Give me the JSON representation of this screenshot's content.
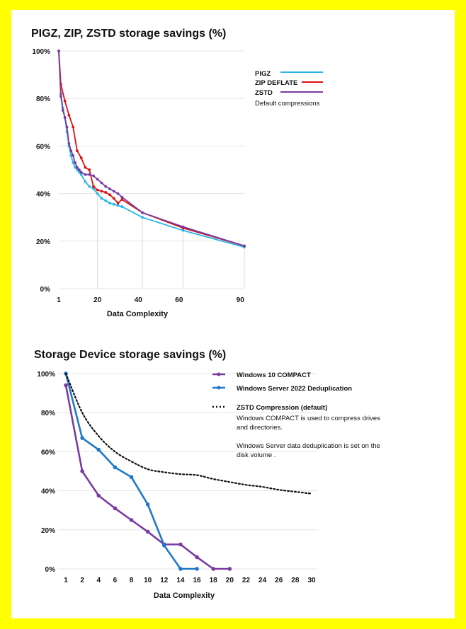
{
  "chart_data": [
    {
      "type": "line",
      "title": "PIGZ, ZIP, ZSTD storage savings (%)",
      "xlabel": "Data Complexity",
      "ylabel": "",
      "xlim": [
        1,
        92
      ],
      "ylim": [
        0,
        100
      ],
      "x_ticks": [
        1,
        20,
        40,
        60,
        90
      ],
      "y_ticks": [
        {
          "v": 0,
          "label": "0%"
        },
        {
          "v": 20,
          "label": "20%"
        },
        {
          "v": 40,
          "label": "40%"
        },
        {
          "v": 60,
          "label": "60%"
        },
        {
          "v": 80,
          "label": "80%"
        },
        {
          "v": 100,
          "label": "100%"
        }
      ],
      "grid": true,
      "legend_position": "top-right",
      "note": "Default compressions",
      "series": [
        {
          "name": "PIGZ",
          "color": "#29b6e6",
          "x": [
            1,
            2,
            3,
            4,
            5,
            6,
            7,
            8,
            9,
            10,
            11,
            12,
            14,
            16,
            18,
            20,
            22,
            24,
            26,
            28,
            30,
            32,
            42,
            62,
            92
          ],
          "y": [
            100,
            82,
            76,
            72,
            66,
            60,
            56,
            53,
            51,
            50,
            49,
            48,
            45,
            43,
            42,
            40,
            38,
            37,
            36,
            35.5,
            35,
            34.5,
            30,
            24.5,
            17.5
          ]
        },
        {
          "name": "ZIP DEFLATE",
          "color": "#e01010",
          "x": [
            1,
            2,
            4,
            6,
            8,
            10,
            12,
            14,
            16,
            18,
            20,
            22,
            24,
            26,
            28,
            30,
            32,
            42,
            62,
            92
          ],
          "y": [
            100,
            86,
            79,
            73,
            68,
            58,
            55,
            51,
            50,
            43,
            41.5,
            41,
            40.5,
            39.5,
            38,
            36,
            37.5,
            32,
            25.5,
            18
          ]
        },
        {
          "name": "ZSTD",
          "color": "#7a3aa0",
          "x": [
            1,
            2,
            3,
            4,
            5,
            6,
            7,
            8,
            9,
            10,
            11,
            12,
            14,
            16,
            18,
            20,
            22,
            24,
            26,
            28,
            30,
            32,
            42,
            62,
            92
          ],
          "y": [
            100,
            81,
            75,
            72,
            68,
            61,
            58,
            56,
            53,
            51,
            50,
            49,
            48,
            48,
            47.5,
            46,
            44.5,
            43,
            42,
            41,
            40,
            38.5,
            32,
            26,
            18
          ]
        }
      ]
    },
    {
      "type": "line",
      "title": "Storage Device storage savings (%)",
      "xlabel": "Data Complexity",
      "ylabel": "",
      "categories": [
        "1",
        "2",
        "4",
        "6",
        "8",
        "10",
        "12",
        "14",
        "16",
        "18",
        "20",
        "22",
        "24",
        "26",
        "28",
        "30"
      ],
      "ylim": [
        0,
        100
      ],
      "y_ticks": [
        {
          "v": 0,
          "label": "0%"
        },
        {
          "v": 20,
          "label": "20%"
        },
        {
          "v": 40,
          "label": "40%"
        },
        {
          "v": 60,
          "label": "60%"
        },
        {
          "v": 80,
          "label": "80%"
        },
        {
          "v": 100,
          "label": "100%"
        }
      ],
      "grid": true,
      "legend_position": "top-right",
      "notes": [
        "Windows COMPACT is used  to compress drives",
        "and directories.",
        "Windows Server data deduplication is set on the",
        "disk volume ."
      ],
      "series": [
        {
          "name": "Windows 10 COMPACT",
          "color": "#7a3aa0",
          "style": "solid",
          "x": [
            "1",
            "2",
            "4",
            "6",
            "8",
            "10",
            "12",
            "14",
            "16",
            "18",
            "20"
          ],
          "y": [
            94,
            50,
            37.5,
            31,
            25,
            19,
            12.5,
            12.5,
            6,
            0,
            0
          ]
        },
        {
          "name": "Windows Server 2022 Deduplication",
          "color": "#1f78c8",
          "style": "solid",
          "x": [
            "1",
            "2",
            "4",
            "6",
            "8",
            "10",
            "12",
            "14",
            "16"
          ],
          "y": [
            100,
            67,
            61,
            52,
            47,
            33,
            12,
            0,
            0
          ]
        },
        {
          "name": "ZSTD Compression (default)",
          "color": "#111111",
          "style": "dotted",
          "x": [
            "1",
            "2",
            "4",
            "6",
            "8",
            "10",
            "12",
            "14",
            "16",
            "18",
            "20",
            "22",
            "24",
            "26",
            "28",
            "30"
          ],
          "y": [
            100,
            80,
            68,
            60,
            55,
            51,
            49.5,
            48.5,
            48,
            46,
            44.5,
            43,
            42,
            40.5,
            39.5,
            38.5
          ]
        }
      ]
    }
  ]
}
